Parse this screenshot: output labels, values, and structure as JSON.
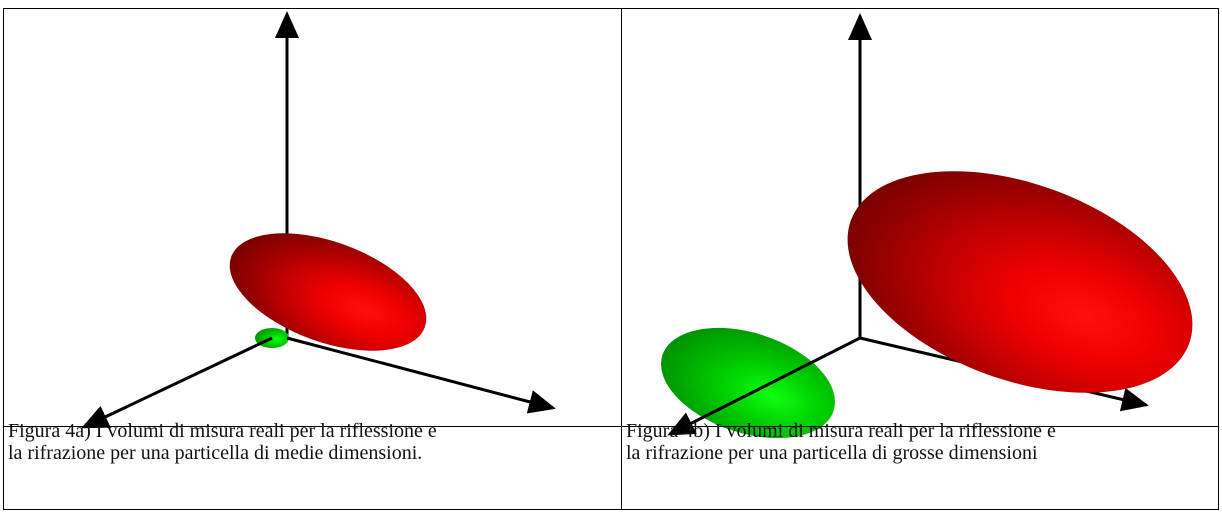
{
  "figures": [
    {
      "caption": [
        "Figura 4a) I volumi di misura reali per la riflessione e",
        "la rifrazione per una particella di medie dimensioni."
      ]
    },
    {
      "caption": [
        "Figura 4b) I volumi di misura reali per la riflessione e",
        "la rifrazione per una particella di grosse dimensioni"
      ]
    }
  ]
}
